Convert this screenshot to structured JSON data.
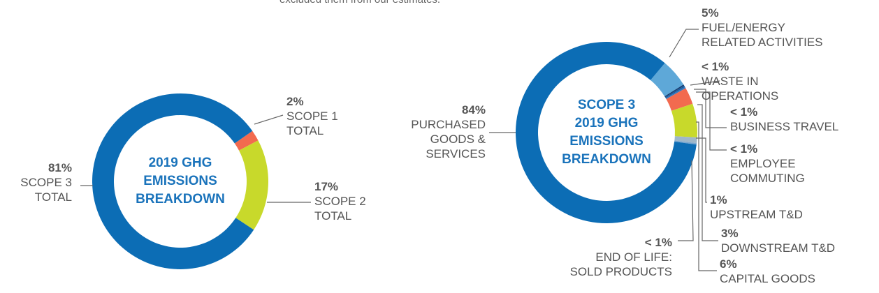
{
  "intro_text": "excluded them from our estimates.",
  "chart_data": [
    {
      "type": "donut",
      "center_text": "2019 GHG\nEMISSIONS\nBREAKDOWN",
      "categories": [
        "SCOPE 1\nTOTAL",
        "SCOPE 2\nTOTAL",
        "SCOPE 3\nTOTAL"
      ],
      "values": [
        2,
        17,
        81
      ],
      "value_labels": [
        "2%",
        "17%",
        "81%"
      ],
      "colors": [
        "#f26a4f",
        "#c8d92b",
        "#0c6db5"
      ]
    },
    {
      "type": "donut",
      "center_text": "SCOPE 3\n2019 GHG\nEMISSIONS\nBREAKDOWN",
      "categories": [
        "FUEL/ENERGY\nRELATED ACTIVITIES",
        "WASTE IN\nOPERATIONS",
        "BUSINESS TRAVEL",
        "EMPLOYEE\nCOMMUTING",
        "DOWNSTREAM T&D",
        "CAPITAL GOODS",
        "UPSTREAM T&D",
        "END OF LIFE:\nSOLD PRODUCTS",
        "PURCHASED\nGOODS &\nSERVICES"
      ],
      "values": [
        5,
        0.25,
        0.25,
        0.25,
        3,
        6,
        1,
        0.25,
        84
      ],
      "value_labels": [
        "5%",
        "< 1%",
        "< 1%",
        "< 1%",
        "3%",
        "6%",
        "1%",
        "< 1%",
        "84%"
      ],
      "colors": [
        "#5ea8d8",
        "#163f73",
        "#1a5a9c",
        "#2f78c0",
        "#f26a4f",
        "#c8d92b",
        "#9fb7c9",
        "#7aa6cf",
        "#0c6db5"
      ]
    }
  ]
}
